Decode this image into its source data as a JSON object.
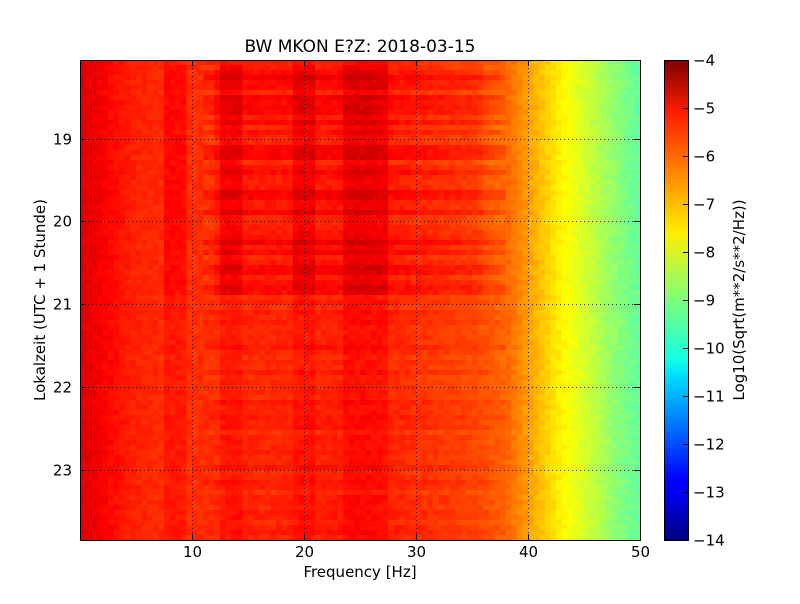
{
  "chart_data": {
    "type": "heatmap",
    "title": "BW MKON E?Z: 2018-03-15",
    "xlabel": "Frequency [Hz]",
    "ylabel": "Lokalzeit (UTC + 1 Stunde)",
    "xlim": [
      0,
      50
    ],
    "ylim_hours": [
      18.05,
      23.85
    ],
    "y_inverted": true,
    "x_ticks": [
      10,
      20,
      30,
      40,
      50
    ],
    "x_tick_labels": [
      "10",
      "20",
      "30",
      "40",
      "50"
    ],
    "y_ticks": [
      19,
      20,
      21,
      22,
      23
    ],
    "y_tick_labels": [
      "19",
      "20",
      "21",
      "22",
      "23"
    ],
    "grid": true,
    "colormap": "jet",
    "colorbar": {
      "label": "Log10(Sqrt(m**2/s**2/Hz))",
      "range": [
        -14,
        -4
      ],
      "ticks": [
        -4,
        -5,
        -6,
        -7,
        -8,
        -9,
        -10,
        -11,
        -12,
        -13,
        -14
      ],
      "tick_labels": [
        "−4",
        "−5",
        "−6",
        "−7",
        "−8",
        "−9",
        "−10",
        "−11",
        "−12",
        "−13",
        "−14"
      ]
    },
    "spectrum_profile": {
      "frequency_hz": [
        0,
        2,
        5,
        10,
        15,
        20,
        25,
        30,
        35,
        38,
        40,
        42,
        44,
        46,
        48,
        50
      ],
      "log10_amplitude": [
        -4.9,
        -5.2,
        -5.6,
        -5.7,
        -5.6,
        -5.6,
        -5.5,
        -5.7,
        -5.9,
        -6.2,
        -6.8,
        -7.4,
        -7.9,
        -8.4,
        -8.9,
        -9.3
      ]
    },
    "strong_bands_hz": [
      8.5,
      13.5,
      20,
      24.5,
      26.5
    ],
    "active_time_window_hours": [
      18.1,
      20.9
    ]
  }
}
